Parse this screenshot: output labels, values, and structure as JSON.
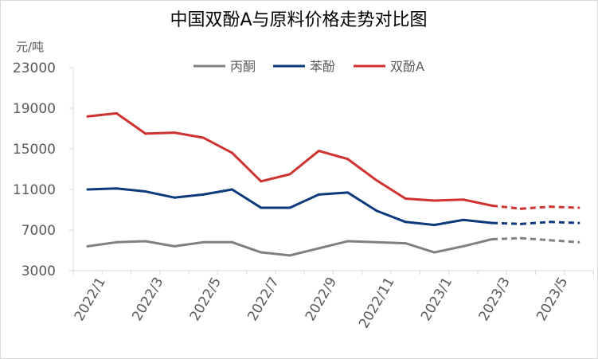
{
  "chart_data": {
    "type": "line",
    "title": "中国双酚A与原料价格走势对比图",
    "ylabel": "元/吨",
    "xlabel": "",
    "ylim": [
      3000,
      23000
    ],
    "yticks": [
      "3000",
      "7000",
      "11000",
      "15000",
      "19000",
      "23000"
    ],
    "categories": [
      "2022/1",
      "2022/2",
      "2022/3",
      "2022/4",
      "2022/5",
      "2022/6",
      "2022/7",
      "2022/8",
      "2022/9",
      "2022/10",
      "2022/11",
      "2022/12",
      "2023/1",
      "2023/2",
      "2023/3",
      "2023/4",
      "2023/5",
      "2023/6"
    ],
    "xtick_labels": [
      "2022/1",
      "2022/3",
      "2022/5",
      "2022/7",
      "2022/9",
      "2022/11",
      "2023/1",
      "2023/3",
      "2023/5"
    ],
    "legend_position": "top",
    "forecast_from_index": 14,
    "series": [
      {
        "name": "丙酮",
        "color": "#808080",
        "values": [
          5400,
          5800,
          5900,
          5400,
          5800,
          5800,
          4800,
          4500,
          5200,
          5900,
          5800,
          5700,
          4800,
          5400,
          6100,
          6200,
          6000,
          5800
        ]
      },
      {
        "name": "苯酚",
        "color": "#0c3a7d",
        "values": [
          11000,
          11100,
          10800,
          10200,
          10500,
          11000,
          9200,
          9200,
          10500,
          10700,
          8900,
          7800,
          7500,
          8000,
          7700,
          7600,
          7800,
          7700
        ]
      },
      {
        "name": "双酚A",
        "color": "#cf3230",
        "values": [
          18200,
          18500,
          16500,
          16600,
          16100,
          14600,
          11800,
          12500,
          14800,
          14000,
          11900,
          10100,
          9900,
          10000,
          9400,
          9100,
          9300,
          9200
        ]
      }
    ]
  }
}
